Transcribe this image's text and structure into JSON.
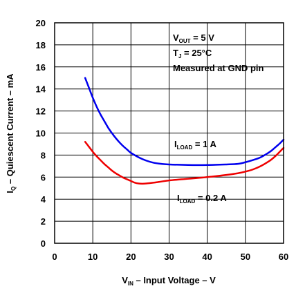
{
  "chart_data": {
    "type": "line",
    "xlabel": {
      "main": "V",
      "sub": "IN",
      "rest": " – Input Voltage – V"
    },
    "ylabel": {
      "main": "I",
      "sub": "Q",
      "rest": " – Quiescent Current – mA"
    },
    "xlim": [
      0,
      60
    ],
    "ylim": [
      0,
      20
    ],
    "xticks": [
      0,
      10,
      20,
      30,
      40,
      50,
      60
    ],
    "yticks": [
      0,
      2,
      4,
      6,
      8,
      10,
      12,
      14,
      16,
      18,
      20
    ],
    "grid": true,
    "conditions": [
      {
        "main": "V",
        "sub": "OUT",
        "rest": " = 5 V"
      },
      {
        "main": "T",
        "sub": "J",
        "rest": " = 25°C"
      },
      {
        "main": "Measured at GND pin",
        "sub": "",
        "rest": ""
      }
    ],
    "series": [
      {
        "name": {
          "main": "I",
          "sub": "LOAD",
          "rest": " = 1 A"
        },
        "color": "#0000ee",
        "x": [
          8,
          9,
          10,
          11,
          12,
          13,
          14,
          15,
          16,
          17,
          18,
          19,
          20,
          22,
          24,
          26,
          28,
          30,
          35,
          40,
          45,
          48,
          50,
          52,
          54,
          56,
          57,
          58,
          59,
          60
        ],
        "y": [
          15.0,
          14.1,
          13.2,
          12.4,
          11.7,
          11.1,
          10.5,
          10.0,
          9.55,
          9.15,
          8.8,
          8.5,
          8.2,
          7.8,
          7.5,
          7.3,
          7.2,
          7.15,
          7.1,
          7.1,
          7.15,
          7.2,
          7.35,
          7.55,
          7.8,
          8.2,
          8.45,
          8.75,
          9.05,
          9.4
        ]
      },
      {
        "name": {
          "main": "I",
          "sub": "LOAD",
          "rest": " = 0.2 A"
        },
        "color": "#ee0000",
        "x": [
          8,
          9,
          10,
          11,
          12,
          13,
          14,
          15,
          16,
          17,
          18,
          19,
          20,
          21,
          22,
          23,
          24,
          26,
          28,
          30,
          35,
          40,
          45,
          48,
          50,
          52,
          54,
          56,
          57,
          58,
          59,
          60
        ],
        "y": [
          9.2,
          8.75,
          8.3,
          7.9,
          7.55,
          7.2,
          6.9,
          6.6,
          6.35,
          6.15,
          5.95,
          5.8,
          5.65,
          5.5,
          5.42,
          5.4,
          5.42,
          5.5,
          5.6,
          5.7,
          5.85,
          6.0,
          6.2,
          6.35,
          6.5,
          6.7,
          7.0,
          7.4,
          7.65,
          7.95,
          8.3,
          8.65
        ]
      }
    ]
  }
}
